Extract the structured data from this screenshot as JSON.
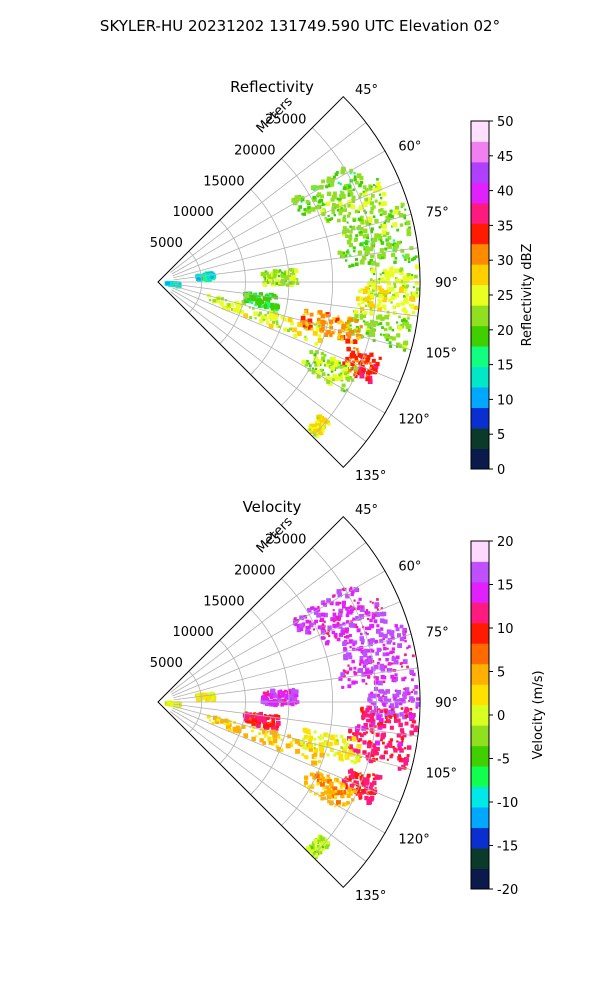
{
  "figure": {
    "suptitle": "SKYLER-HU  20231202  131749.590 UTC Elevation 02°"
  },
  "chart_data": [
    {
      "type": "heatmap",
      "projection": "polar-sector",
      "title": "Reflectivity",
      "range_axis_label": "Meters",
      "range_ticks": [
        "5000",
        "10000",
        "15000",
        "20000",
        "25000"
      ],
      "range_tick_values": [
        5000,
        10000,
        15000,
        20000,
        25000
      ],
      "rlim": [
        0,
        30000
      ],
      "azimuth_ticks": [
        "45°",
        "60°",
        "75°",
        "90°",
        "105°",
        "120°",
        "135°"
      ],
      "azimuth_tick_values": [
        45,
        60,
        75,
        90,
        105,
        120,
        135
      ],
      "azimuth_range": [
        45,
        135
      ],
      "grid": true,
      "colorbar": {
        "label": "Reflectivity dBZ",
        "min": 0,
        "max": 50,
        "ticks": [
          "0",
          "5",
          "10",
          "15",
          "20",
          "25",
          "30",
          "35",
          "40",
          "45",
          "50"
        ],
        "tick_values": [
          0,
          5,
          10,
          15,
          20,
          25,
          30,
          35,
          40,
          45,
          50
        ],
        "colormap": [
          "#0a1a4a",
          "#0b3a2a",
          "#0a2fd0",
          "#00a8ff",
          "#00e8c8",
          "#10ff80",
          "#40d000",
          "#90e020",
          "#e8ff20",
          "#ffd000",
          "#ff8a00",
          "#ff1a00",
          "#ff1a80",
          "#e020ff",
          "#b040ff",
          "#f080f0",
          "#ffe0ff"
        ]
      },
      "echoes": [
        {
          "az": 62,
          "r": [
            18000,
            26500
          ],
          "value": 20
        },
        {
          "az": 68,
          "r": [
            20000,
            28000
          ],
          "value": 22
        },
        {
          "az": 75,
          "r": [
            22000,
            29500
          ],
          "value": 21
        },
        {
          "az": 82,
          "r": [
            21000,
            29800
          ],
          "value": 20
        },
        {
          "az": 88,
          "r": [
            12000,
            16000
          ],
          "value": 22
        },
        {
          "az": 90,
          "r": [
            24000,
            29800
          ],
          "value": 23
        },
        {
          "az": 95,
          "r": [
            23000,
            29800
          ],
          "value": 25
        },
        {
          "az": 100,
          "r": [
            10000,
            14000
          ],
          "value": 18
        },
        {
          "az": 102,
          "r": [
            22000,
            29500
          ],
          "value": 21
        },
        {
          "az": 108,
          "r": [
            6000,
            20000
          ],
          "value": 24
        },
        {
          "az": 112,
          "r": [
            23000,
            27000
          ],
          "value": 33
        },
        {
          "az": 117,
          "r": [
            19000,
            25000
          ],
          "value": 22
        },
        {
          "az": 104,
          "r": [
            17000,
            24000
          ],
          "value": 30
        },
        {
          "az": 98,
          "r": [
            1000,
            2500
          ],
          "value": 12
        },
        {
          "az": 84,
          "r": [
            4500,
            6500
          ],
          "value": 12
        },
        {
          "az": 133,
          "r": [
            24000,
            25500
          ],
          "value": 26
        }
      ]
    },
    {
      "type": "heatmap",
      "projection": "polar-sector",
      "title": "Velocity",
      "range_axis_label": "Meters",
      "range_ticks": [
        "5000",
        "10000",
        "15000",
        "20000",
        "25000"
      ],
      "range_tick_values": [
        5000,
        10000,
        15000,
        20000,
        25000
      ],
      "rlim": [
        0,
        30000
      ],
      "azimuth_ticks": [
        "45°",
        "60°",
        "75°",
        "90°",
        "105°",
        "120°",
        "135°"
      ],
      "azimuth_tick_values": [
        45,
        60,
        75,
        90,
        105,
        120,
        135
      ],
      "azimuth_range": [
        45,
        135
      ],
      "grid": true,
      "colorbar": {
        "label": "Velocity (m/s)",
        "min": -20,
        "max": 20,
        "ticks": [
          "-20",
          "-15",
          "-10",
          "-5",
          "0",
          "5",
          "10",
          "15",
          "20"
        ],
        "tick_values": [
          -20,
          -15,
          -10,
          -5,
          0,
          5,
          10,
          15,
          20
        ],
        "colormap": [
          "#0a1a4a",
          "#0b3a2a",
          "#0a2fd0",
          "#00a8ff",
          "#00e8e8",
          "#10ff50",
          "#40d000",
          "#90e020",
          "#d8ff20",
          "#ffe000",
          "#ffb000",
          "#ff6a00",
          "#ff1a00",
          "#ff1a80",
          "#e020ff",
          "#c050ff",
          "#ffd8ff"
        ]
      },
      "echoes": [
        {
          "az": 62,
          "r": [
            18000,
            26500
          ],
          "value": 14
        },
        {
          "az": 68,
          "r": [
            20000,
            28000
          ],
          "value": 14
        },
        {
          "az": 75,
          "r": [
            22000,
            29500
          ],
          "value": 15
        },
        {
          "az": 82,
          "r": [
            21000,
            29800
          ],
          "value": 14
        },
        {
          "az": 88,
          "r": [
            12000,
            16000
          ],
          "value": 14
        },
        {
          "az": 90,
          "r": [
            24000,
            29800
          ],
          "value": 15
        },
        {
          "az": 95,
          "r": [
            23000,
            29800
          ],
          "value": 11
        },
        {
          "az": 100,
          "r": [
            10000,
            14000
          ],
          "value": 10
        },
        {
          "az": 102,
          "r": [
            22000,
            29500
          ],
          "value": 11
        },
        {
          "az": 108,
          "r": [
            6000,
            20000
          ],
          "value": 3
        },
        {
          "az": 112,
          "r": [
            23000,
            27000
          ],
          "value": 10
        },
        {
          "az": 117,
          "r": [
            19000,
            25000
          ],
          "value": 4
        },
        {
          "az": 104,
          "r": [
            17000,
            24000
          ],
          "value": 1
        },
        {
          "az": 98,
          "r": [
            1000,
            2500
          ],
          "value": 0
        },
        {
          "az": 84,
          "r": [
            4500,
            6500
          ],
          "value": 1
        },
        {
          "az": 133,
          "r": [
            24000,
            25500
          ],
          "value": -2
        }
      ]
    }
  ]
}
